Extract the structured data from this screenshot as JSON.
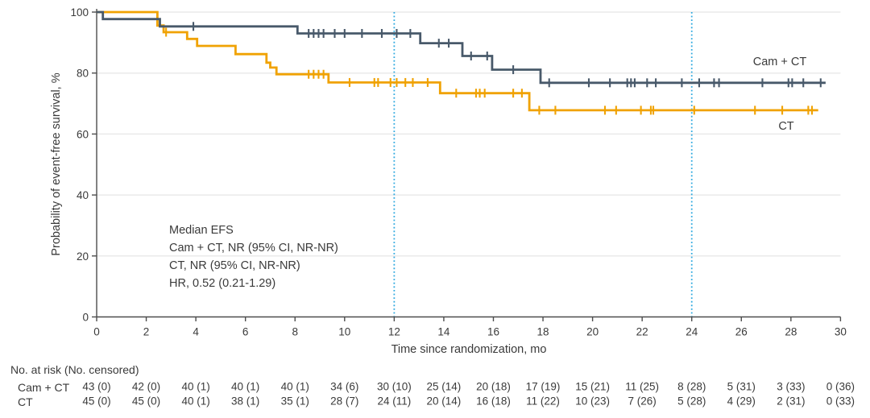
{
  "chart_data": {
    "type": "line",
    "subtype": "kaplan-meier-step",
    "title": "",
    "xlabel": "Time since randomization, mo",
    "ylabel": "Probability of event-free survival, %",
    "xlim": [
      0,
      30
    ],
    "ylim": [
      0,
      100
    ],
    "xticks": [
      0,
      2,
      4,
      6,
      8,
      10,
      12,
      14,
      16,
      18,
      20,
      22,
      24,
      26,
      28,
      30
    ],
    "yticks": [
      0,
      20,
      40,
      60,
      80,
      100
    ],
    "grid": "horizontal-light",
    "legend_position": "inline-curve-labels",
    "colors": {
      "grid": "#EAEAEA",
      "axis": "#4D4D4D",
      "text": "#3A3A3A"
    },
    "reference_lines": {
      "x": [
        12,
        24
      ],
      "style": "dotted",
      "color": "#2FA9DF"
    },
    "annotation": {
      "lines": [
        "Median EFS",
        "Cam + CT, NR (95% CI, NR-NR)",
        "CT, NR (95% CI, NR-NR)",
        "HR, 0.52 (0.21-1.29)"
      ]
    },
    "series": [
      {
        "name": "Cam + CT",
        "color": "#48596A",
        "steps": [
          [
            0,
            100
          ],
          [
            0.25,
            97.7
          ],
          [
            2.55,
            95.3
          ],
          [
            8.1,
            93.0
          ],
          [
            13.05,
            89.8
          ],
          [
            14.75,
            85.6
          ],
          [
            15.95,
            81.1
          ],
          [
            17.9,
            76.8
          ]
        ],
        "end_x": 29.4,
        "censor_x": [
          3.9,
          8.55,
          8.75,
          8.95,
          9.15,
          9.6,
          10.0,
          10.7,
          11.5,
          12.1,
          12.65,
          13.8,
          14.2,
          15.1,
          15.75,
          16.8,
          18.25,
          19.85,
          20.7,
          21.4,
          21.55,
          21.7,
          22.2,
          22.55,
          23.6,
          24.3,
          24.9,
          25.1,
          26.85,
          27.9,
          28.05,
          28.5,
          29.2
        ]
      },
      {
        "name": "CT",
        "color": "#F0A202",
        "steps": [
          [
            0,
            100
          ],
          [
            2.45,
            95.6
          ],
          [
            2.7,
            93.4
          ],
          [
            3.65,
            91.2
          ],
          [
            4.05,
            88.9
          ],
          [
            5.6,
            86.2
          ],
          [
            6.85,
            83.4
          ],
          [
            7.0,
            81.8
          ],
          [
            7.25,
            79.6
          ],
          [
            9.35,
            76.9
          ],
          [
            13.85,
            73.4
          ],
          [
            17.45,
            67.8
          ]
        ],
        "end_x": 29.1,
        "censor_x": [
          2.8,
          8.55,
          8.75,
          8.95,
          9.15,
          10.2,
          11.2,
          11.35,
          11.85,
          12.1,
          12.45,
          12.75,
          13.35,
          14.5,
          15.3,
          15.45,
          15.65,
          16.8,
          17.15,
          17.85,
          18.5,
          20.5,
          20.95,
          21.95,
          22.35,
          22.45,
          24.1,
          26.55,
          27.65,
          28.7,
          28.85
        ]
      }
    ]
  },
  "risk_table": {
    "header": "No. at risk (No. censored)",
    "time_points": [
      0,
      2,
      4,
      6,
      8,
      10,
      12,
      14,
      16,
      18,
      20,
      22,
      24,
      26,
      28,
      30
    ],
    "rows": [
      {
        "label": "Cam + CT",
        "values": [
          "43 (0)",
          "42 (0)",
          "40 (1)",
          "40 (1)",
          "40 (1)",
          "34 (6)",
          "30 (10)",
          "25 (14)",
          "20 (18)",
          "17 (19)",
          "15 (21)",
          "11 (25)",
          "8 (28)",
          "5 (31)",
          "3 (33)",
          "0 (36)"
        ]
      },
      {
        "label": "CT",
        "values": [
          "45 (0)",
          "45 (0)",
          "40 (1)",
          "38 (1)",
          "35 (1)",
          "28 (7)",
          "24 (11)",
          "20 (14)",
          "16 (18)",
          "11 (22)",
          "10 (23)",
          "7 (26)",
          "5 (28)",
          "4 (29)",
          "2 (31)",
          "0 (33)"
        ]
      }
    ]
  }
}
